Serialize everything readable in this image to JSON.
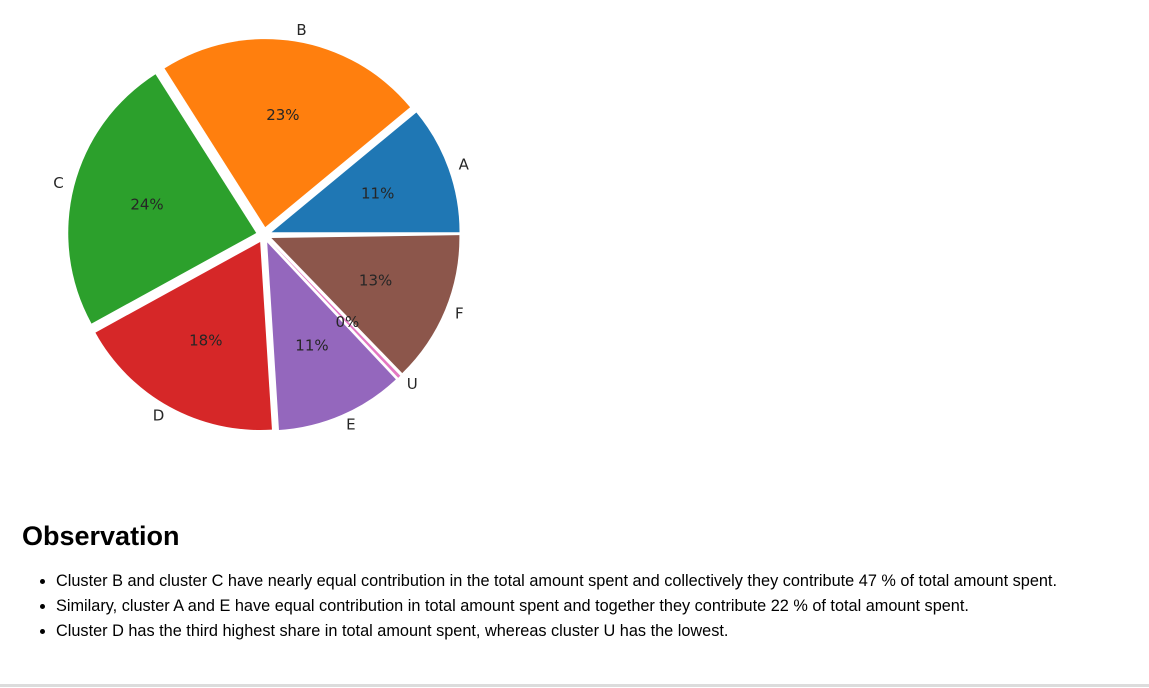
{
  "chart_data": {
    "type": "pie",
    "categories": [
      "A",
      "B",
      "C",
      "D",
      "E",
      "U",
      "F"
    ],
    "values": [
      11,
      23,
      24,
      18,
      11,
      0,
      13
    ],
    "value_labels": [
      "11%",
      "23%",
      "24%",
      "18%",
      "11%",
      "0%",
      "13%"
    ],
    "colors": [
      "#1f77b4",
      "#ff7f0e",
      "#2ca02c",
      "#d62728",
      "#9467bd",
      "#e377c2",
      "#8c564b"
    ],
    "exploded": true,
    "legend": "none"
  },
  "observation": {
    "heading": "Observation",
    "bullets": [
      "Cluster B and cluster C have nearly equal contribution in the total amount spent and collectively they contribute 47 % of total amount spent.",
      "Similary, cluster A and E have equal contribution in total amount spent and together they contribute 22 % of total amount spent.",
      "Cluster D has the third highest share in total amount spent, whereas cluster U has the lowest."
    ]
  }
}
